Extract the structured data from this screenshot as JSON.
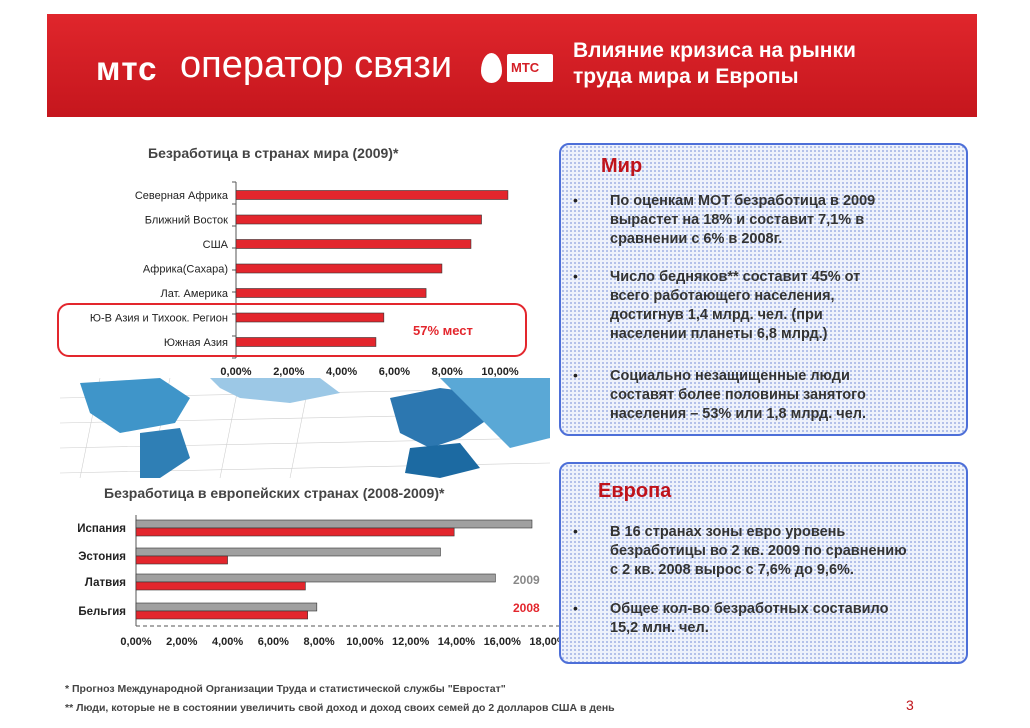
{
  "header": {
    "brand_name": "мтс",
    "brand_tagline": "оператор связи",
    "logo_text": "МТС",
    "title_line1": "Влияние кризиса на рынки",
    "title_line2": "труда мира и Европы"
  },
  "chart_data": [
    {
      "type": "bar",
      "title": "Безработица в странах мира (2009)*",
      "categories": [
        "Северная Африка",
        "Ближний Восток",
        "США",
        "Африка(Сахара)",
        "Лат. Америка",
        "Ю-В Азия и Тихоок. Регион",
        "Южная Азия"
      ],
      "values": [
        10.3,
        9.3,
        8.9,
        7.8,
        7.2,
        5.6,
        5.3
      ],
      "xlim": [
        0,
        10
      ],
      "ticks": [
        "0,00%",
        "2,00%",
        "4,00%",
        "6,00%",
        "8,00%",
        "10,00%"
      ],
      "annotation": "57% мест",
      "color": "#e3262d"
    },
    {
      "type": "bar",
      "title": "Безработица в европейских странах (2008-2009)*",
      "categories": [
        "Испания",
        "Эстония",
        "Латвия",
        "Бельгия"
      ],
      "series": [
        {
          "name": "2009",
          "values": [
            17.3,
            13.3,
            15.7,
            7.9
          ],
          "color": "#a0a0a0"
        },
        {
          "name": "2008",
          "values": [
            13.9,
            4.0,
            7.4,
            7.5
          ],
          "color": "#e3262d"
        }
      ],
      "xlim": [
        0,
        18
      ],
      "ticks": [
        "0,00%",
        "2,00%",
        "4,00%",
        "6,00%",
        "8,00%",
        "10,00%",
        "12,00%",
        "14,00%",
        "16,00%",
        "18,00%"
      ]
    }
  ],
  "world_box": {
    "title": "Мир",
    "bullets": [
      [
        "По оценкам МОТ безработица в 2009",
        "вырастет на 18% и составит 7,1% в",
        "сравнении с 6% в 2008г."
      ],
      [
        "Число бедняков** составит 45% от",
        "всего работающего населения,",
        "достигнув 1,4 млрд. чел. (при",
        "населении планеты 6,8 млрд.)"
      ],
      [
        "Социально незащищенные люди",
        "составят более половины занятого",
        "населения – 53% или 1,8 млрд. чел."
      ]
    ]
  },
  "europe_box": {
    "title": "Европа",
    "bullets": [
      [
        "В 16 странах зоны евро уровень",
        "безработицы во 2 кв. 2009 по сравнению",
        "с 2 кв. 2008 вырос с 7,6% до 9,6%."
      ],
      [
        "Общее кол-во безработных составило",
        "15,2 млн. чел."
      ]
    ]
  },
  "bullet_char": "•",
  "footnotes": {
    "note1": "* Прогноз Международной Организации Труда и статистической службы \"Евростат\"",
    "note2": "** Люди, которые не в состоянии увеличить свой доход и доход своих семей до 2 долларов США в день"
  },
  "page_number": "3",
  "colors": {
    "brand_red": "#d41f26",
    "bar_red": "#e3262d",
    "bar_gray": "#a0a0a0",
    "box_border": "#4d6fd8"
  }
}
